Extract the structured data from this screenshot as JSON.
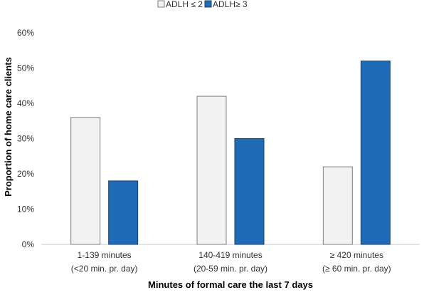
{
  "chart_data": {
    "type": "bar",
    "categories": [
      [
        "1-139 minutes",
        "(<20 min. pr. day)"
      ],
      [
        "140-419 minutes",
        "(20-59 min. pr. day)"
      ],
      [
        "≥ 420 minutes",
        "(≥ 60 min. pr. day)"
      ]
    ],
    "series": [
      {
        "name": "ADLH ≤ 2",
        "values": [
          36,
          42,
          22
        ],
        "color": "#f2f2f2",
        "stroke": "#7f7f7f"
      },
      {
        "name": "ADLH≥ 3",
        "values": [
          18,
          30,
          52
        ],
        "color": "#1f6bb5",
        "stroke": "#1b3f6b"
      }
    ],
    "xlabel": "Minutes of formal care the last 7 days",
    "ylabel": "Proportion of home care clients",
    "ylim": [
      0,
      60
    ],
    "yticks": [
      "0%",
      "10%",
      "20%",
      "30%",
      "40%",
      "50%",
      "60%"
    ],
    "ytick_values": [
      0,
      10,
      20,
      30,
      40,
      50,
      60
    ],
    "grid": false,
    "legend": "top-center"
  }
}
